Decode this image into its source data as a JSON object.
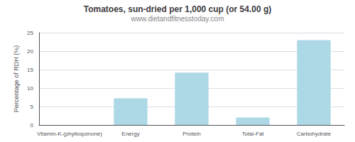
{
  "chart_data": {
    "type": "bar",
    "title": "Tomatoes, sun-dried per 1,000 cup (or 54.00 g)",
    "subtitle": "www.dietandfitnesstoday.com",
    "categories": [
      "Vitamin-K-(phylloquinone)",
      "Energy",
      "Protein",
      "Total-Fat",
      "Carbohydrate"
    ],
    "values": [
      0,
      7.2,
      14.2,
      2.0,
      23.0
    ],
    "color": "#add8e6",
    "ylabel": "Percentage of RDH (%)",
    "ylim": [
      0,
      25
    ],
    "yticks": [
      0,
      5,
      10,
      15,
      20,
      25
    ],
    "grid": true
  }
}
